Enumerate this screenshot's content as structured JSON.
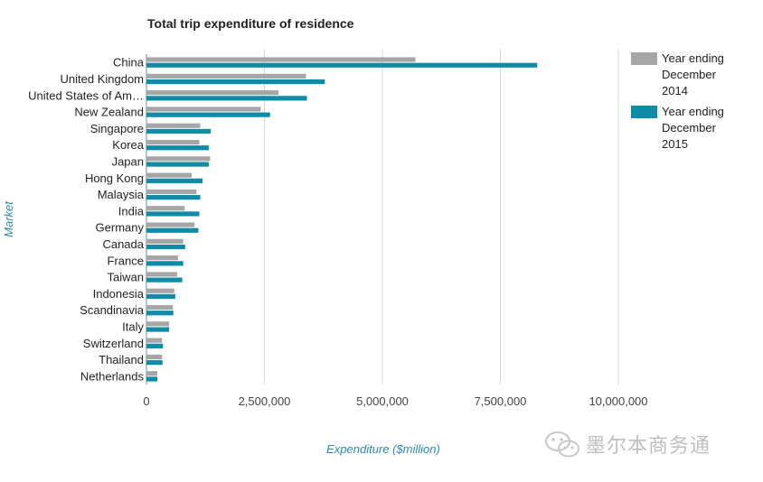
{
  "chart_data": {
    "type": "bar",
    "orientation": "horizontal",
    "title": "Total trip expenditure of residence",
    "xlabel": "Expenditure ($million)",
    "ylabel": "Market",
    "xlim": [
      0,
      10000000
    ],
    "xticks": [
      0,
      2500000,
      5000000,
      7500000,
      10000000
    ],
    "xtick_labels": [
      "0",
      "2,500,000",
      "5,000,000",
      "7,500,000",
      "10,000,000"
    ],
    "grid": "vertical",
    "legend_position": "top-right",
    "categories": [
      "China",
      "United Kingdom",
      "United States of Am…",
      "New Zealand",
      "Singapore",
      "Korea",
      "Japan",
      "Hong Kong",
      "Malaysia",
      "India",
      "Germany",
      "Canada",
      "France",
      "Taiwan",
      "Indonesia",
      "Scandinavia",
      "Italy",
      "Switzerland",
      "Thailand",
      "Netherlands"
    ],
    "series": [
      {
        "name": "Year ending December 2014",
        "color": "#a6a6a6",
        "values": [
          5700000,
          3380000,
          2800000,
          2420000,
          1140000,
          1120000,
          1350000,
          960000,
          1060000,
          810000,
          1020000,
          780000,
          670000,
          650000,
          590000,
          560000,
          480000,
          330000,
          330000,
          230000
        ]
      },
      {
        "name": "Year ending December 2015",
        "color": "#0e8ba5",
        "values": [
          8280000,
          3780000,
          3400000,
          2620000,
          1360000,
          1320000,
          1320000,
          1190000,
          1140000,
          1120000,
          1100000,
          820000,
          780000,
          760000,
          610000,
          570000,
          480000,
          350000,
          340000,
          230000
        ]
      }
    ]
  },
  "watermark": {
    "text": "墨尔本商务通",
    "icon": "wechat-icon"
  }
}
